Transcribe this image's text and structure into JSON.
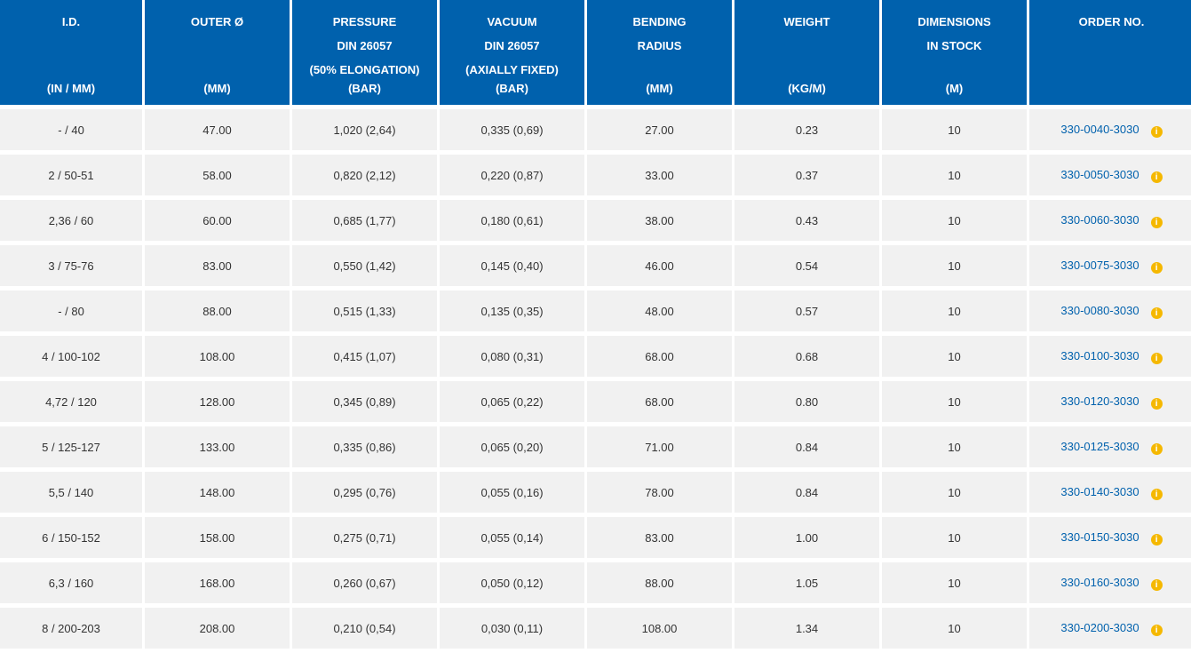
{
  "columns": [
    {
      "lines": [
        "I.D."
      ],
      "unit": "(IN / MM)"
    },
    {
      "lines": [
        "OUTER Ø"
      ],
      "unit": "(MM)"
    },
    {
      "lines": [
        "PRESSURE",
        "DIN 26057",
        "(50% ELONGATION)"
      ],
      "unit": "(BAR)"
    },
    {
      "lines": [
        "VACUUM",
        "DIN 26057",
        "(AXIALLY FIXED)"
      ],
      "unit": "(BAR)"
    },
    {
      "lines": [
        "BENDING",
        "RADIUS"
      ],
      "unit": "(MM)"
    },
    {
      "lines": [
        "WEIGHT"
      ],
      "unit": "(KG/M)"
    },
    {
      "lines": [
        "DIMENSIONS",
        "IN STOCK"
      ],
      "unit": "(M)"
    },
    {
      "lines": [
        "ORDER NO."
      ],
      "unit": ""
    }
  ],
  "rows": [
    {
      "id": "- / 40",
      "outer": "47.00",
      "pressure": "1,020 (2,64)",
      "vacuum": "0,335 (0,69)",
      "radius": "27.00",
      "weight": "0.23",
      "stock": "10",
      "order": "330-0040-3030"
    },
    {
      "id": "2 / 50-51",
      "outer": "58.00",
      "pressure": "0,820 (2,12)",
      "vacuum": "0,220 (0,87)",
      "radius": "33.00",
      "weight": "0.37",
      "stock": "10",
      "order": "330-0050-3030"
    },
    {
      "id": "2,36 / 60",
      "outer": "60.00",
      "pressure": "0,685 (1,77)",
      "vacuum": "0,180 (0,61)",
      "radius": "38.00",
      "weight": "0.43",
      "stock": "10",
      "order": "330-0060-3030"
    },
    {
      "id": "3 / 75-76",
      "outer": "83.00",
      "pressure": "0,550 (1,42)",
      "vacuum": "0,145 (0,40)",
      "radius": "46.00",
      "weight": "0.54",
      "stock": "10",
      "order": "330-0075-3030"
    },
    {
      "id": "- / 80",
      "outer": "88.00",
      "pressure": "0,515 (1,33)",
      "vacuum": "0,135 (0,35)",
      "radius": "48.00",
      "weight": "0.57",
      "stock": "10",
      "order": "330-0080-3030"
    },
    {
      "id": "4 / 100-102",
      "outer": "108.00",
      "pressure": "0,415 (1,07)",
      "vacuum": "0,080 (0,31)",
      "radius": "68.00",
      "weight": "0.68",
      "stock": "10",
      "order": "330-0100-3030"
    },
    {
      "id": "4,72 / 120",
      "outer": "128.00",
      "pressure": "0,345 (0,89)",
      "vacuum": "0,065 (0,22)",
      "radius": "68.00",
      "weight": "0.80",
      "stock": "10",
      "order": "330-0120-3030"
    },
    {
      "id": "5 / 125-127",
      "outer": "133.00",
      "pressure": "0,335 (0,86)",
      "vacuum": "0,065 (0,20)",
      "radius": "71.00",
      "weight": "0.84",
      "stock": "10",
      "order": "330-0125-3030"
    },
    {
      "id": "5,5 / 140",
      "outer": "148.00",
      "pressure": "0,295 (0,76)",
      "vacuum": "0,055 (0,16)",
      "radius": "78.00",
      "weight": "0.84",
      "stock": "10",
      "order": "330-0140-3030"
    },
    {
      "id": "6 / 150-152",
      "outer": "158.00",
      "pressure": "0,275 (0,71)",
      "vacuum": "0,055 (0,14)",
      "radius": "83.00",
      "weight": "1.00",
      "stock": "10",
      "order": "330-0150-3030"
    },
    {
      "id": "6,3 / 160",
      "outer": "168.00",
      "pressure": "0,260 (0,67)",
      "vacuum": "0,050 (0,12)",
      "radius": "88.00",
      "weight": "1.05",
      "stock": "10",
      "order": "330-0160-3030"
    },
    {
      "id": "8 / 200-203",
      "outer": "208.00",
      "pressure": "0,210 (0,54)",
      "vacuum": "0,030 (0,11)",
      "radius": "108.00",
      "weight": "1.34",
      "stock": "10",
      "order": "330-0200-3030"
    }
  ],
  "info_icon": {
    "glyph": "i",
    "name": "info-icon",
    "color": "#f5b800"
  },
  "colors": {
    "header_bg": "#0061ad",
    "row_bg": "#f1f1f1",
    "link": "#0061ad"
  }
}
